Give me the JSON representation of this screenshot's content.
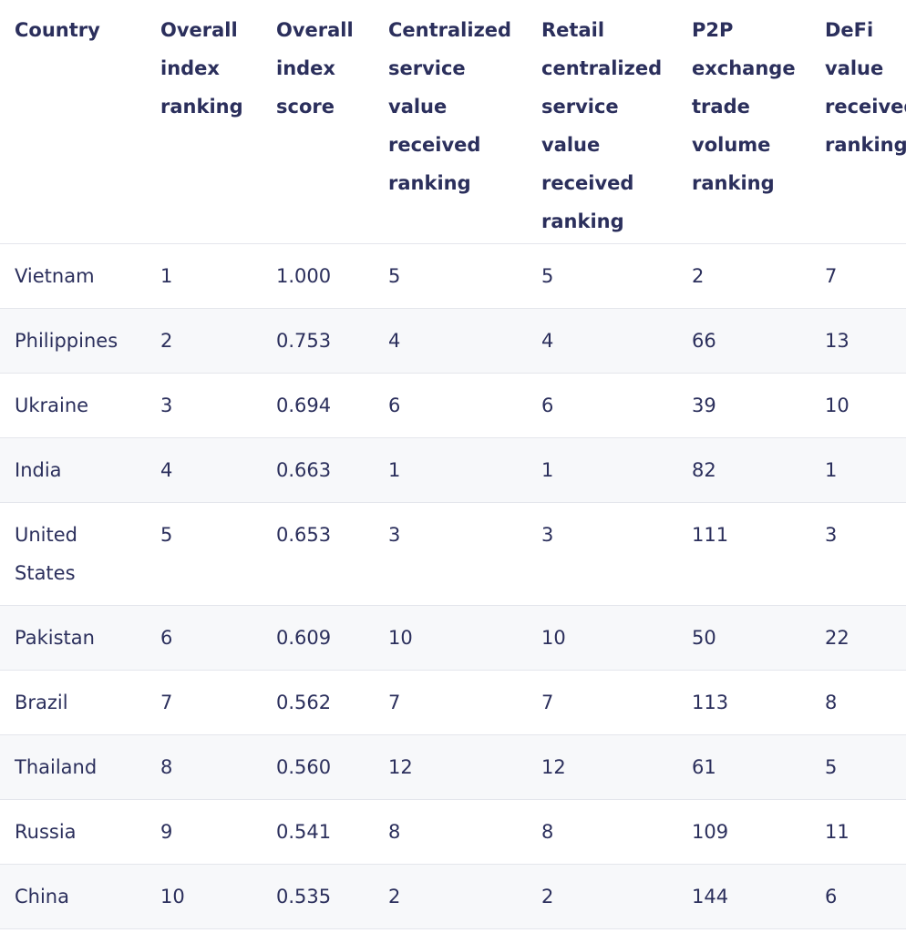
{
  "chart_data": {
    "type": "table",
    "columns": [
      "Country",
      "Overall index ranking",
      "Overall index score",
      "Centralized service value received ranking",
      "Retail centralized service value received ranking",
      "P2P exchange trade volume ranking",
      "DeFi value received ranking"
    ],
    "header_lines": [
      [
        "Country"
      ],
      [
        "Overall",
        "index",
        "ranking"
      ],
      [
        "Overall",
        "index",
        "score"
      ],
      [
        "Centralized",
        "service",
        "value",
        "received",
        "ranking"
      ],
      [
        "Retail",
        "centralized",
        "service",
        "value",
        "received",
        "ranking"
      ],
      [
        "P2P",
        "exchange",
        "trade",
        "volume",
        "ranking"
      ],
      [
        "DeFi",
        "value",
        "received",
        "ranking"
      ]
    ],
    "rows": [
      [
        "Vietnam",
        "1",
        "1.000",
        "5",
        "5",
        "2",
        "7"
      ],
      [
        "Philippines",
        "2",
        "0.753",
        "4",
        "4",
        "66",
        "13"
      ],
      [
        "Ukraine",
        "3",
        "0.694",
        "6",
        "6",
        "39",
        "10"
      ],
      [
        "India",
        "4",
        "0.663",
        "1",
        "1",
        "82",
        "1"
      ],
      [
        "United States",
        "5",
        "0.653",
        "3",
        "3",
        "111",
        "3"
      ],
      [
        "Pakistan",
        "6",
        "0.609",
        "10",
        "10",
        "50",
        "22"
      ],
      [
        "Brazil",
        "7",
        "0.562",
        "7",
        "7",
        "113",
        "8"
      ],
      [
        "Thailand",
        "8",
        "0.560",
        "12",
        "12",
        "61",
        "5"
      ],
      [
        "Russia",
        "9",
        "0.541",
        "8",
        "8",
        "109",
        "11"
      ],
      [
        "China",
        "10",
        "0.535",
        "2",
        "2",
        "144",
        "6"
      ]
    ],
    "row_line_counts": [
      1,
      1,
      1,
      1,
      2,
      1,
      1,
      1,
      1,
      1
    ]
  }
}
